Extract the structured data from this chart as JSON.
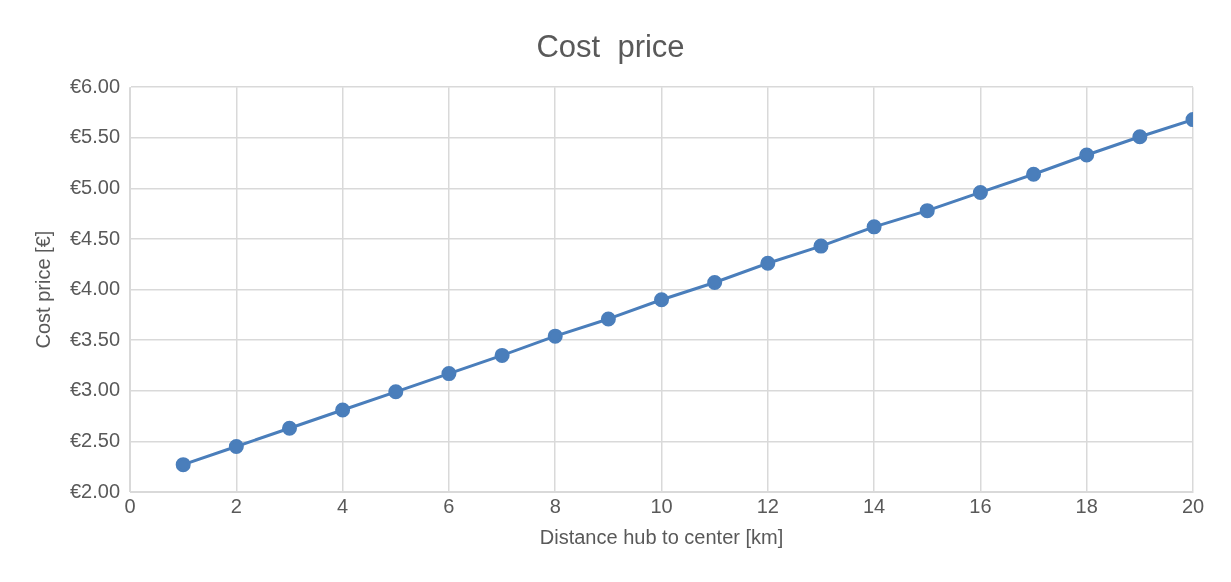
{
  "chart_data": {
    "type": "line",
    "title": "Cost  price",
    "xlabel": "Distance hub to center [km]",
    "ylabel": "Cost price [€]",
    "x": [
      1,
      2,
      3,
      4,
      5,
      6,
      7,
      8,
      9,
      10,
      11,
      12,
      13,
      14,
      15,
      16,
      17,
      18,
      19,
      20
    ],
    "series": [
      {
        "color": "#4a7ebb",
        "values": [
          2.27,
          2.45,
          2.63,
          2.81,
          2.99,
          3.17,
          3.35,
          3.54,
          3.71,
          3.9,
          4.07,
          4.26,
          4.43,
          4.62,
          4.78,
          4.96,
          5.14,
          5.33,
          5.51,
          5.68
        ]
      }
    ],
    "xlim": [
      0,
      20
    ],
    "xticks": [
      0,
      2,
      4,
      6,
      8,
      10,
      12,
      14,
      16,
      18,
      20
    ],
    "ylim": [
      2,
      6
    ],
    "yticks": [
      {
        "value": 2,
        "label": "€2.00"
      },
      {
        "value": 2.5,
        "label": "€2.50"
      },
      {
        "value": 3,
        "label": "€3.00"
      },
      {
        "value": 3.5,
        "label": "€3.50"
      },
      {
        "value": 4,
        "label": "€4.00"
      },
      {
        "value": 4.5,
        "label": "€4.50"
      },
      {
        "value": 5,
        "label": "€5.00"
      },
      {
        "value": 5.5,
        "label": "€5.50"
      },
      {
        "value": 6,
        "label": "€6.00"
      }
    ],
    "grid": true,
    "legend": false,
    "marker": "circle",
    "line_style": "solid"
  }
}
